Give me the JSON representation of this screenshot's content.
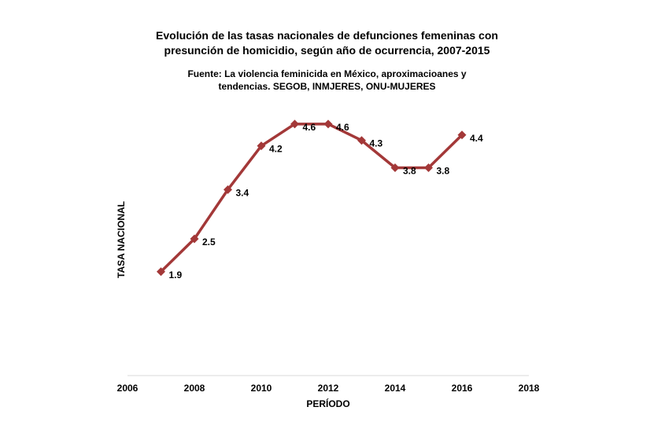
{
  "chart_data": {
    "type": "line",
    "title_lines": [
      "Evolución de las tasas nacionales de defunciones femeninas con",
      "presunción de homicidio, según año de ocurrencia, 2007-2015"
    ],
    "subtitle_lines": [
      "Fuente: La violencia feminicida en México, aproximacioanes y",
      "tendencias. SEGOB, INMJERES, ONU-MUJERES"
    ],
    "xlabel": "PERÍODO",
    "ylabel": "TASA NACIONAL",
    "x_ticks": [
      "2006",
      "2008",
      "2010",
      "2012",
      "2014",
      "2016",
      "2018"
    ],
    "xlim": [
      2006,
      2018
    ],
    "ylim": [
      0,
      5
    ],
    "series": [
      {
        "x": [
          2007,
          2008,
          2009,
          2010,
          2011,
          2012,
          2013,
          2014,
          2015,
          2016
        ],
        "values": [
          1.9,
          2.5,
          3.4,
          4.2,
          4.6,
          4.6,
          4.3,
          3.8,
          3.8,
          4.4
        ],
        "labels": [
          "1.9",
          "2.5",
          "3.4",
          "4.2",
          "4.6",
          "4.6",
          "4.3",
          "3.8",
          "3.8",
          "4.4"
        ],
        "color": "#a33838"
      }
    ],
    "grid": false,
    "legend": "none"
  }
}
